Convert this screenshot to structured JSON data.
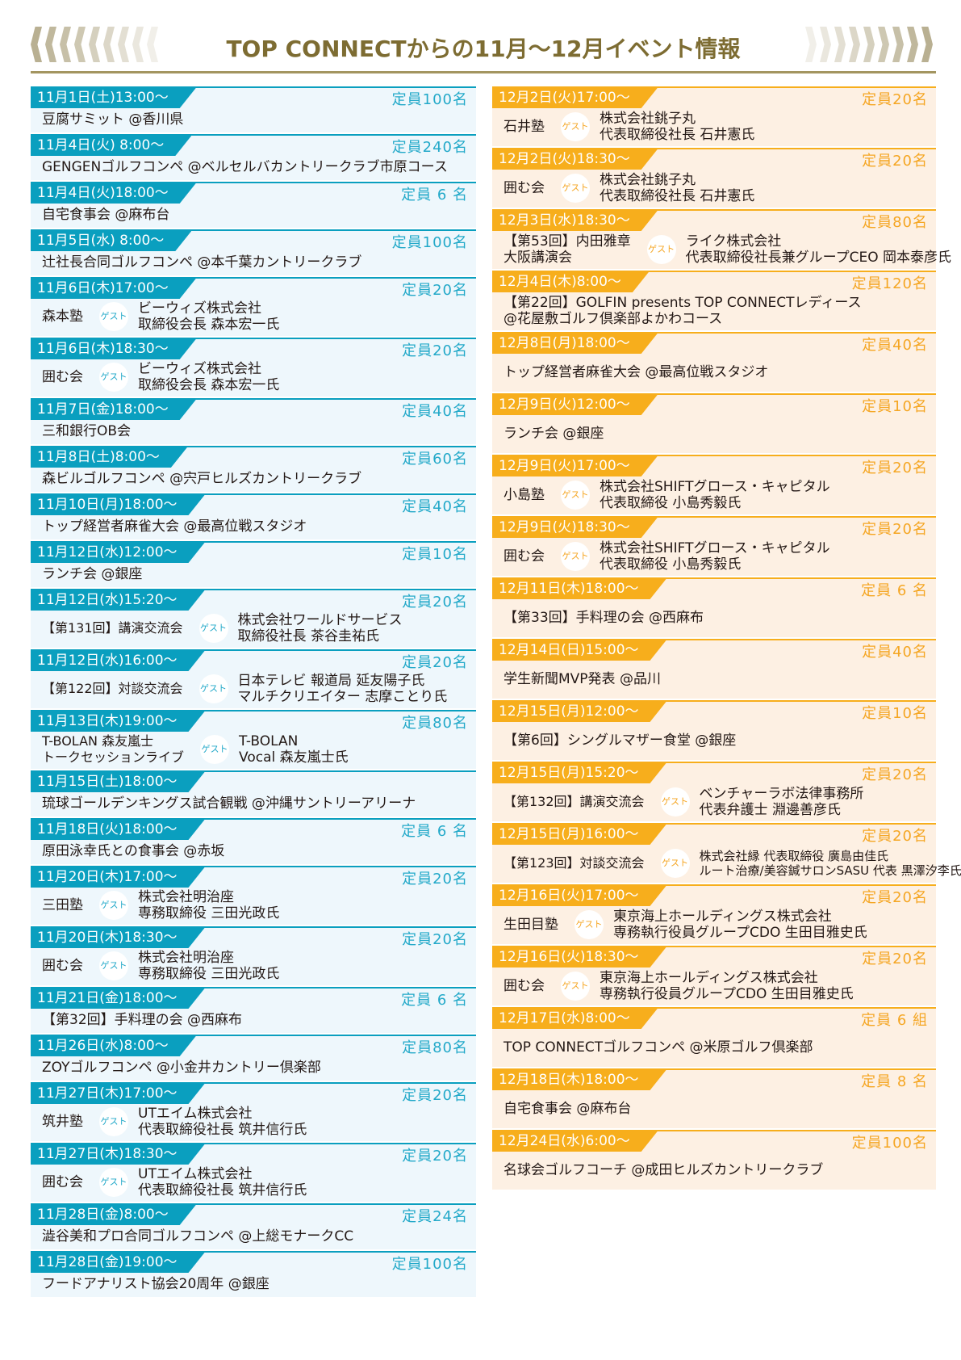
{
  "header": {
    "title": "TOP CONNECTからの11月〜12月イベント情報"
  },
  "guest_label": "ゲスト",
  "colors": {
    "november": "#0a9fbf",
    "december": "#f7ae1c",
    "title": "#7d6c32"
  },
  "november": [
    {
      "date": "11月1日(土)13:00〜",
      "capacity": "定員100名",
      "title": [
        "豆腐サミット @香川県"
      ]
    },
    {
      "date": "11月4日(火) 8:00〜",
      "capacity": "定員240名",
      "title": [
        "GENGENゴルフコンペ @ベルセルバカントリークラブ市原コース"
      ]
    },
    {
      "date": "11月4日(火)18:00〜",
      "capacity": "定員 6 名",
      "title": [
        "自宅食事会 @麻布台"
      ]
    },
    {
      "date": "11月5日(水) 8:00〜",
      "capacity": "定員100名",
      "title": [
        "辻社長合同ゴルフコンペ @本千葉カントリークラブ"
      ]
    },
    {
      "date": "11月6日(木)17:00〜",
      "capacity": "定員20名",
      "title": [
        "森本塾"
      ],
      "guest": [
        "ビーウィズ株式会社",
        "取締役会長 森本宏一氏"
      ]
    },
    {
      "date": "11月6日(木)18:30〜",
      "capacity": "定員20名",
      "title": [
        "囲む会"
      ],
      "guest": [
        "ビーウィズ株式会社",
        "取締役会長 森本宏一氏"
      ]
    },
    {
      "date": "11月7日(金)18:00〜",
      "capacity": "定員40名",
      "title": [
        "三和銀行OB会"
      ]
    },
    {
      "date": "11月8日(土)8:00〜",
      "capacity": "定員60名",
      "title": [
        "森ビルゴルフコンペ @宍戸ヒルズカントリークラブ"
      ]
    },
    {
      "date": "11月10日(月)18:00〜",
      "capacity": "定員40名",
      "title": [
        "トップ経営者麻雀大会 @最高位戦スタジオ"
      ]
    },
    {
      "date": "11月12日(水)12:00〜",
      "capacity": "定員10名",
      "title": [
        "ランチ会 @銀座"
      ]
    },
    {
      "date": "11月12日(水)15:20〜",
      "capacity": "定員20名",
      "title": [
        "【第131回】講演交流会"
      ],
      "guest": [
        "株式会社ワールドサービス",
        "取締役社長 茶谷圭祐氏"
      ]
    },
    {
      "date": "11月12日(水)16:00〜",
      "capacity": "定員20名",
      "title": [
        "【第122回】対談交流会"
      ],
      "guest": [
        "日本テレビ 報道局 延友陽子氏",
        "マルチクリエイター 志摩ことり氏"
      ]
    },
    {
      "date": "11月13日(木)19:00〜",
      "capacity": "定員80名",
      "title": [
        "T-BOLAN 森友嵐士",
        "トークセッションライブ"
      ],
      "guest": [
        "T-BOLAN",
        "Vocal 森友嵐士氏"
      ]
    },
    {
      "date": "11月15日(土)18:00〜",
      "capacity": "",
      "title": [
        "琉球ゴールデンキングス試合観戦 @沖縄サントリーアリーナ"
      ]
    },
    {
      "date": "11月18日(火)18:00〜",
      "capacity": "定員 6 名",
      "title": [
        "原田泳幸氏との食事会 @赤坂"
      ]
    },
    {
      "date": "11月20日(木)17:00〜",
      "capacity": "定員20名",
      "title": [
        "三田塾"
      ],
      "guest": [
        "株式会社明治座",
        "専務取締役 三田光政氏"
      ]
    },
    {
      "date": "11月20日(木)18:30〜",
      "capacity": "定員20名",
      "title": [
        "囲む会"
      ],
      "guest": [
        "株式会社明治座",
        "専務取締役 三田光政氏"
      ]
    },
    {
      "date": "11月21日(金)18:00〜",
      "capacity": "定員 6 名",
      "title": [
        "【第32回】手料理の会 @西麻布"
      ]
    },
    {
      "date": "11月26日(水)8:00〜",
      "capacity": "定員80名",
      "title": [
        "ZOYゴルフコンペ @小金井カントリー倶楽部"
      ]
    },
    {
      "date": "11月27日(木)17:00〜",
      "capacity": "定員20名",
      "title": [
        "筑井塾"
      ],
      "guest": [
        "UTエイム株式会社",
        "代表取締役社長 筑井信行氏"
      ]
    },
    {
      "date": "11月27日(木)18:30〜",
      "capacity": "定員20名",
      "title": [
        "囲む会"
      ],
      "guest": [
        "UTエイム株式会社",
        "代表取締役社長 筑井信行氏"
      ]
    },
    {
      "date": "11月28日(金)8:00〜",
      "capacity": "定員24名",
      "title": [
        "澁谷美和プロ合同ゴルフコンペ @上総モナークCC"
      ]
    },
    {
      "date": "11月28日(金)19:00〜",
      "capacity": "定員100名",
      "title": [
        "フードアナリスト協会20周年 @銀座"
      ]
    }
  ],
  "december": [
    {
      "date": "12月2日(火)17:00〜",
      "capacity": "定員20名",
      "title": [
        "石井塾"
      ],
      "guest": [
        "株式会社銚子丸",
        "代表取締役社長 石井憲氏"
      ]
    },
    {
      "date": "12月2日(火)18:30〜",
      "capacity": "定員20名",
      "title": [
        "囲む会"
      ],
      "guest": [
        "株式会社銚子丸",
        "代表取締役社長 石井憲氏"
      ]
    },
    {
      "date": "12月3日(水)18:30〜",
      "capacity": "定員80名",
      "title": [
        "【第53回】内田雅章",
        "大阪講演会"
      ],
      "guest": [
        "ライク株式会社",
        "代表取締役社長兼グループCEO 岡本泰彦氏"
      ]
    },
    {
      "date": "12月4日(木)8:00〜",
      "capacity": "定員120名",
      "title": [
        "【第22回】GOLFIN presents TOP CONNECTレディース",
        "@花屋敷ゴルフ倶楽部よかわコース"
      ]
    },
    {
      "date": "12月8日(月)18:00〜",
      "capacity": "定員40名",
      "title": [
        "トップ経営者麻雀大会 @最高位戦スタジオ"
      ]
    },
    {
      "date": "12月9日(火)12:00〜",
      "capacity": "定員10名",
      "title": [
        "ランチ会 @銀座"
      ]
    },
    {
      "date": "12月9日(火)17:00〜",
      "capacity": "定員20名",
      "title": [
        "小島塾"
      ],
      "guest": [
        "株式会社SHIFTグロース・キャピタル",
        "代表取締役 小島秀毅氏"
      ]
    },
    {
      "date": "12月9日(火)18:30〜",
      "capacity": "定員20名",
      "title": [
        "囲む会"
      ],
      "guest": [
        "株式会社SHIFTグロース・キャピタル",
        "代表取締役 小島秀毅氏"
      ]
    },
    {
      "date": "12月11日(木)18:00〜",
      "capacity": "定員 6 名",
      "title": [
        "【第33回】手料理の会 @西麻布"
      ]
    },
    {
      "date": "12月14日(日)15:00〜",
      "capacity": "定員40名",
      "title": [
        "学生新聞MVP発表 @品川"
      ]
    },
    {
      "date": "12月15日(月)12:00〜",
      "capacity": "定員10名",
      "title": [
        "【第6回】シングルマザー食堂 @銀座"
      ]
    },
    {
      "date": "12月15日(月)15:20〜",
      "capacity": "定員20名",
      "title": [
        "【第132回】講演交流会"
      ],
      "guest": [
        "ベンチャーラボ法律事務所",
        "代表弁護士 淵邊善彦氏"
      ]
    },
    {
      "date": "12月15日(月)16:00〜",
      "capacity": "定員20名",
      "title": [
        "【第123回】対談交流会"
      ],
      "guest": [
        "株式会社縁 代表取締役 廣島由佳氏",
        "ルート治療/美容鍼サロンSASU 代表 黒澤汐李氏"
      ]
    },
    {
      "date": "12月16日(火)17:00〜",
      "capacity": "定員20名",
      "title": [
        "生田目塾"
      ],
      "guest": [
        "東京海上ホールディングス株式会社",
        "専務執行役員グループCDO 生田目雅史氏"
      ]
    },
    {
      "date": "12月16日(火)18:30〜",
      "capacity": "定員20名",
      "title": [
        "囲む会"
      ],
      "guest": [
        "東京海上ホールディングス株式会社",
        "専務執行役員グループCDO 生田目雅史氏"
      ]
    },
    {
      "date": "12月17日(水)8:00〜",
      "capacity": "定員 6 組",
      "title": [
        "TOP CONNECTゴルフコンペ @米原ゴルフ倶楽部"
      ]
    },
    {
      "date": "12月18日(木)18:00〜",
      "capacity": "定員 8 名",
      "title": [
        "自宅食事会 @麻布台"
      ]
    },
    {
      "date": "12月24日(水)6:00〜",
      "capacity": "定員100名",
      "title": [
        "名球会ゴルフコーチ @成田ヒルズカントリークラブ"
      ]
    }
  ]
}
